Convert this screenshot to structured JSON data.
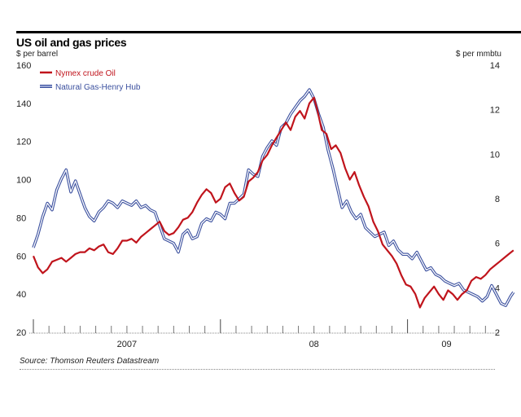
{
  "chart_data": {
    "type": "line",
    "title": "US oil and gas prices",
    "ylabel_left": "$ per barrel",
    "ylabel_right": "$ per mmbtu",
    "source": "Source: Thomson Reuters Datastream",
    "x_unit": "months since Jan 2007",
    "xlim": [
      0,
      29.5
    ],
    "x_ticks_major": [
      0,
      12,
      24
    ],
    "x_ticks_minor_step": 1,
    "x_labels": [
      {
        "label": "2007",
        "x": 6
      },
      {
        "label": "08",
        "x": 18
      },
      {
        "label": "09",
        "x": 26.5
      }
    ],
    "y_left": {
      "lim": [
        20,
        160
      ],
      "ticks": [
        "20",
        "40",
        "60",
        "80",
        "100",
        "120",
        "140",
        "160"
      ]
    },
    "y_right": {
      "lim": [
        2,
        14
      ],
      "ticks": [
        "2",
        "4",
        "6",
        "8",
        "10",
        "12",
        "14"
      ]
    },
    "grid": false,
    "legend_position": "top-left",
    "series": [
      {
        "name": "Nymex crude Oil",
        "axis": "left",
        "color": "#c0141c",
        "points": [
          [
            0,
            60
          ],
          [
            0.3,
            54
          ],
          [
            0.6,
            51
          ],
          [
            0.9,
            53
          ],
          [
            1.2,
            57
          ],
          [
            1.5,
            58
          ],
          [
            1.8,
            59
          ],
          [
            2.1,
            57
          ],
          [
            2.4,
            59
          ],
          [
            2.7,
            61
          ],
          [
            3.0,
            62
          ],
          [
            3.3,
            62
          ],
          [
            3.6,
            64
          ],
          [
            3.9,
            63
          ],
          [
            4.2,
            65
          ],
          [
            4.5,
            66
          ],
          [
            4.8,
            62
          ],
          [
            5.1,
            61
          ],
          [
            5.4,
            64
          ],
          [
            5.7,
            68
          ],
          [
            6.0,
            68
          ],
          [
            6.3,
            69
          ],
          [
            6.6,
            67
          ],
          [
            6.9,
            70
          ],
          [
            7.2,
            72
          ],
          [
            7.5,
            74
          ],
          [
            7.8,
            76
          ],
          [
            8.1,
            78
          ],
          [
            8.4,
            73
          ],
          [
            8.7,
            71
          ],
          [
            9.0,
            72
          ],
          [
            9.3,
            75
          ],
          [
            9.6,
            79
          ],
          [
            9.9,
            80
          ],
          [
            10.2,
            83
          ],
          [
            10.5,
            88
          ],
          [
            10.8,
            92
          ],
          [
            11.1,
            95
          ],
          [
            11.4,
            93
          ],
          [
            11.7,
            88
          ],
          [
            12.0,
            90
          ],
          [
            12.3,
            96
          ],
          [
            12.6,
            98
          ],
          [
            12.9,
            93
          ],
          [
            13.2,
            89
          ],
          [
            13.5,
            91
          ],
          [
            13.8,
            99
          ],
          [
            14.1,
            101
          ],
          [
            14.4,
            104
          ],
          [
            14.7,
            110
          ],
          [
            15.0,
            113
          ],
          [
            15.3,
            118
          ],
          [
            15.6,
            122
          ],
          [
            15.9,
            126
          ],
          [
            16.2,
            130
          ],
          [
            16.5,
            126
          ],
          [
            16.8,
            133
          ],
          [
            17.1,
            136
          ],
          [
            17.4,
            132
          ],
          [
            17.7,
            140
          ],
          [
            18.0,
            143
          ],
          [
            18.2,
            137
          ],
          [
            18.5,
            126
          ],
          [
            18.8,
            124
          ],
          [
            19.1,
            116
          ],
          [
            19.4,
            118
          ],
          [
            19.7,
            114
          ],
          [
            20.0,
            106
          ],
          [
            20.3,
            100
          ],
          [
            20.6,
            104
          ],
          [
            20.9,
            97
          ],
          [
            21.2,
            91
          ],
          [
            21.5,
            86
          ],
          [
            21.8,
            78
          ],
          [
            22.1,
            73
          ],
          [
            22.4,
            66
          ],
          [
            22.7,
            63
          ],
          [
            23.0,
            60
          ],
          [
            23.3,
            56
          ],
          [
            23.6,
            50
          ],
          [
            23.9,
            45
          ],
          [
            24.2,
            44
          ],
          [
            24.5,
            40
          ],
          [
            24.8,
            33
          ],
          [
            25.1,
            38
          ],
          [
            25.4,
            41
          ],
          [
            25.7,
            44
          ],
          [
            26.0,
            40
          ],
          [
            26.3,
            37
          ],
          [
            26.6,
            42
          ],
          [
            26.9,
            40
          ],
          [
            27.2,
            37
          ],
          [
            27.5,
            40
          ],
          [
            27.8,
            42
          ],
          [
            28.1,
            47
          ],
          [
            28.4,
            49
          ],
          [
            28.7,
            48
          ],
          [
            29.0,
            50
          ],
          [
            29.3,
            53
          ],
          [
            29.6,
            55
          ],
          [
            29.9,
            57
          ],
          [
            30.2,
            59
          ],
          [
            30.5,
            61
          ],
          [
            30.8,
            63
          ]
        ]
      },
      {
        "name": "Natural Gas-Henry Hub",
        "axis": "right",
        "color": "#3a4f9e",
        "points": [
          [
            0,
            5.8
          ],
          [
            0.3,
            6.4
          ],
          [
            0.6,
            7.2
          ],
          [
            0.9,
            7.8
          ],
          [
            1.2,
            7.5
          ],
          [
            1.5,
            8.4
          ],
          [
            1.8,
            8.9
          ],
          [
            2.1,
            9.3
          ],
          [
            2.4,
            8.3
          ],
          [
            2.7,
            8.8
          ],
          [
            3.0,
            8.2
          ],
          [
            3.3,
            7.6
          ],
          [
            3.6,
            7.2
          ],
          [
            3.9,
            7.0
          ],
          [
            4.2,
            7.4
          ],
          [
            4.5,
            7.6
          ],
          [
            4.8,
            7.9
          ],
          [
            5.1,
            7.8
          ],
          [
            5.4,
            7.6
          ],
          [
            5.7,
            7.9
          ],
          [
            6.0,
            7.8
          ],
          [
            6.3,
            7.7
          ],
          [
            6.6,
            7.9
          ],
          [
            6.9,
            7.6
          ],
          [
            7.2,
            7.7
          ],
          [
            7.5,
            7.5
          ],
          [
            7.8,
            7.4
          ],
          [
            8.1,
            6.8
          ],
          [
            8.4,
            6.2
          ],
          [
            8.7,
            6.1
          ],
          [
            9.0,
            6.0
          ],
          [
            9.3,
            5.6
          ],
          [
            9.6,
            6.4
          ],
          [
            9.9,
            6.6
          ],
          [
            10.2,
            6.2
          ],
          [
            10.5,
            6.3
          ],
          [
            10.8,
            6.9
          ],
          [
            11.1,
            7.1
          ],
          [
            11.4,
            7.0
          ],
          [
            11.7,
            7.4
          ],
          [
            12.0,
            7.3
          ],
          [
            12.3,
            7.1
          ],
          [
            12.6,
            7.8
          ],
          [
            12.9,
            7.8
          ],
          [
            13.2,
            8.0
          ],
          [
            13.5,
            8.2
          ],
          [
            13.8,
            9.3
          ],
          [
            14.1,
            9.1
          ],
          [
            14.4,
            9.0
          ],
          [
            14.7,
            9.9
          ],
          [
            15.0,
            10.3
          ],
          [
            15.3,
            10.6
          ],
          [
            15.6,
            10.4
          ],
          [
            15.9,
            11.2
          ],
          [
            16.2,
            11.4
          ],
          [
            16.5,
            11.8
          ],
          [
            16.8,
            12.1
          ],
          [
            17.1,
            12.4
          ],
          [
            17.4,
            12.6
          ],
          [
            17.7,
            12.9
          ],
          [
            18.0,
            12.5
          ],
          [
            18.3,
            11.8
          ],
          [
            18.6,
            11.2
          ],
          [
            18.9,
            10.2
          ],
          [
            19.2,
            9.4
          ],
          [
            19.5,
            8.5
          ],
          [
            19.8,
            7.6
          ],
          [
            20.1,
            7.9
          ],
          [
            20.4,
            7.4
          ],
          [
            20.7,
            7.1
          ],
          [
            21.0,
            7.3
          ],
          [
            21.3,
            6.7
          ],
          [
            21.6,
            6.5
          ],
          [
            21.9,
            6.3
          ],
          [
            22.2,
            6.4
          ],
          [
            22.5,
            6.5
          ],
          [
            22.8,
            5.9
          ],
          [
            23.1,
            6.1
          ],
          [
            23.4,
            5.7
          ],
          [
            23.7,
            5.5
          ],
          [
            24.0,
            5.5
          ],
          [
            24.3,
            5.3
          ],
          [
            24.6,
            5.6
          ],
          [
            24.9,
            5.2
          ],
          [
            25.2,
            4.8
          ],
          [
            25.5,
            4.9
          ],
          [
            25.8,
            4.6
          ],
          [
            26.1,
            4.5
          ],
          [
            26.4,
            4.3
          ],
          [
            26.7,
            4.2
          ],
          [
            27.0,
            4.1
          ],
          [
            27.3,
            4.2
          ],
          [
            27.6,
            3.9
          ],
          [
            27.9,
            3.8
          ],
          [
            28.2,
            3.7
          ],
          [
            28.5,
            3.6
          ],
          [
            28.8,
            3.4
          ],
          [
            29.1,
            3.6
          ],
          [
            29.4,
            4.1
          ],
          [
            29.7,
            3.7
          ],
          [
            30.0,
            3.3
          ],
          [
            30.3,
            3.2
          ],
          [
            30.6,
            3.6
          ],
          [
            30.8,
            3.8
          ]
        ]
      }
    ]
  }
}
